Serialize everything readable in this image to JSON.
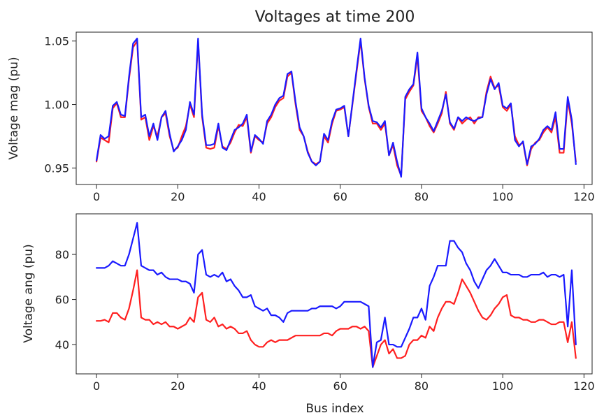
{
  "figure_title": "Voltages at time  200",
  "colors": {
    "red": "#ff2020",
    "blue": "#1a1aff"
  },
  "chart_data": [
    {
      "type": "line",
      "title": "Voltages at time  200",
      "xlabel": "",
      "ylabel": "Voltage mag (pu)",
      "xlim": [
        -5,
        122
      ],
      "ylim": [
        0.937,
        1.057
      ],
      "xticks": [
        0,
        20,
        40,
        60,
        80,
        100,
        120
      ],
      "xtick_labels": [
        "0",
        "20",
        "40",
        "60",
        "80",
        "100",
        "120"
      ],
      "yticks": [
        0.95,
        1.0,
        1.05
      ],
      "ytick_labels": [
        "0.95",
        "1.00",
        "1.05"
      ],
      "grid": false,
      "series": [
        {
          "color": "#ff2020",
          "values": [
            0.955,
            0.974,
            0.972,
            0.97,
            0.997,
            1.001,
            0.99,
            0.99,
            1.02,
            1.045,
            1.05,
            0.988,
            0.99,
            0.972,
            0.983,
            0.975,
            0.99,
            0.993,
            0.975,
            0.964,
            0.966,
            0.975,
            0.983,
            1.0,
            0.99,
            1.05,
            0.99,
            0.966,
            0.965,
            0.966,
            0.983,
            0.967,
            0.965,
            0.97,
            0.978,
            0.984,
            0.983,
            0.99,
            0.962,
            0.975,
            0.972,
            0.97,
            0.985,
            0.99,
            0.998,
            1.003,
            1.005,
            1.022,
            1.025,
            1.0,
            0.98,
            0.975,
            0.963,
            0.955,
            0.953,
            0.955,
            0.975,
            0.97,
            0.985,
            0.995,
            0.996,
            0.998,
            0.975,
            1.0,
            1.025,
            1.05,
            1.02,
            0.998,
            0.985,
            0.985,
            0.98,
            0.985,
            0.96,
            0.968,
            0.952,
            0.944,
            1.004,
            1.01,
            1.015,
            1.038,
            0.995,
            0.99,
            0.983,
            0.978,
            0.985,
            0.993,
            1.01,
            0.985,
            0.98,
            0.99,
            0.985,
            0.988,
            0.99,
            0.985,
            0.99,
            0.99,
            1.01,
            1.022,
            1.013,
            1.015,
            0.998,
            0.995,
            1.0,
            0.975,
            0.968,
            0.97,
            0.952,
            0.965,
            0.97,
            0.972,
            0.978,
            0.982,
            0.978,
            0.99,
            0.962,
            0.962,
            1.003,
            0.985,
            0.955
          ]
        },
        {
          "color": "#1a1aff",
          "values": [
            0.956,
            0.976,
            0.973,
            0.975,
            0.999,
            1.002,
            0.992,
            0.991,
            1.022,
            1.048,
            1.052,
            0.99,
            0.992,
            0.975,
            0.985,
            0.972,
            0.99,
            0.995,
            0.977,
            0.963,
            0.967,
            0.972,
            0.98,
            1.002,
            0.992,
            1.052,
            0.992,
            0.968,
            0.968,
            0.969,
            0.985,
            0.966,
            0.964,
            0.972,
            0.98,
            0.982,
            0.985,
            0.992,
            0.963,
            0.976,
            0.973,
            0.969,
            0.987,
            0.992,
            1.0,
            1.005,
            1.007,
            1.024,
            1.026,
            1.002,
            0.982,
            0.975,
            0.962,
            0.955,
            0.952,
            0.955,
            0.977,
            0.972,
            0.987,
            0.996,
            0.997,
            0.999,
            0.975,
            1.001,
            1.027,
            1.052,
            1.021,
            0.999,
            0.987,
            0.986,
            0.982,
            0.987,
            0.96,
            0.97,
            0.955,
            0.943,
            1.006,
            1.012,
            1.016,
            1.041,
            0.997,
            0.99,
            0.985,
            0.979,
            0.987,
            0.995,
            1.008,
            0.986,
            0.981,
            0.99,
            0.987,
            0.99,
            0.988,
            0.987,
            0.989,
            0.99,
            1.008,
            1.02,
            1.012,
            1.017,
            0.999,
            0.997,
            1.001,
            0.972,
            0.967,
            0.971,
            0.953,
            0.967,
            0.969,
            0.973,
            0.98,
            0.983,
            0.98,
            0.994,
            0.965,
            0.965,
            1.006,
            0.988,
            0.953
          ]
        }
      ]
    },
    {
      "type": "line",
      "xlabel": "Bus index",
      "ylabel": "Voltage ang (pu)",
      "xlim": [
        -5,
        122
      ],
      "ylim": [
        27,
        98
      ],
      "xticks": [
        0,
        20,
        40,
        60,
        80,
        100,
        120
      ],
      "xtick_labels": [
        "0",
        "20",
        "40",
        "60",
        "80",
        "100",
        "120"
      ],
      "yticks": [
        40,
        60,
        80
      ],
      "ytick_labels": [
        "40",
        "60",
        "80"
      ],
      "grid": false,
      "series": [
        {
          "color": "#ff2020",
          "values": [
            50.5,
            50.5,
            51,
            50,
            54,
            54,
            52,
            51,
            56,
            64,
            73,
            52,
            51,
            51,
            49,
            50,
            49,
            50,
            48,
            48,
            47,
            48,
            49,
            52,
            50,
            61,
            63,
            51,
            50,
            52,
            48,
            49,
            47,
            48,
            47,
            45,
            45,
            46,
            42,
            40,
            39,
            39,
            41,
            42,
            41,
            42,
            42,
            42,
            43,
            44,
            44,
            44,
            44,
            44,
            44,
            44,
            45,
            45,
            44,
            46,
            47,
            47,
            47,
            48,
            48,
            47,
            48,
            46,
            30,
            35,
            40,
            42,
            36,
            38,
            34,
            34,
            35,
            40,
            42,
            42,
            44,
            43,
            48,
            46,
            52,
            56,
            59,
            59,
            58,
            63,
            69,
            66,
            63,
            59,
            55,
            52,
            51,
            53,
            56,
            58,
            61,
            62,
            53,
            52,
            52,
            51,
            51,
            50,
            50,
            51,
            51,
            50,
            49,
            49,
            50,
            50,
            41,
            50,
            34
          ]
        },
        {
          "color": "#1a1aff",
          "values": [
            74,
            74,
            74,
            75,
            77,
            76,
            75,
            75,
            80,
            87,
            94,
            75,
            74,
            73,
            73,
            71,
            72,
            70,
            69,
            69,
            69,
            68,
            68,
            67,
            63,
            80,
            82,
            71,
            70,
            71,
            70,
            72,
            68,
            69,
            66,
            64,
            61,
            61,
            62,
            57,
            56,
            55,
            56,
            53,
            53,
            52,
            50,
            54,
            55,
            55,
            55,
            55,
            55,
            56,
            56,
            57,
            57,
            57,
            57,
            56,
            57,
            59,
            59,
            59,
            59,
            59,
            58,
            57,
            30,
            41,
            42,
            52,
            40,
            40,
            39,
            39,
            43,
            47,
            52,
            52,
            56,
            51,
            66,
            70,
            75,
            75,
            75,
            86,
            86,
            83,
            81,
            76,
            73,
            68,
            65,
            69,
            73,
            75,
            78,
            75,
            72,
            72,
            71,
            71,
            71,
            70,
            70,
            71,
            71,
            71,
            72,
            70,
            71,
            71,
            70,
            71,
            48,
            73,
            40
          ]
        }
      ]
    }
  ]
}
